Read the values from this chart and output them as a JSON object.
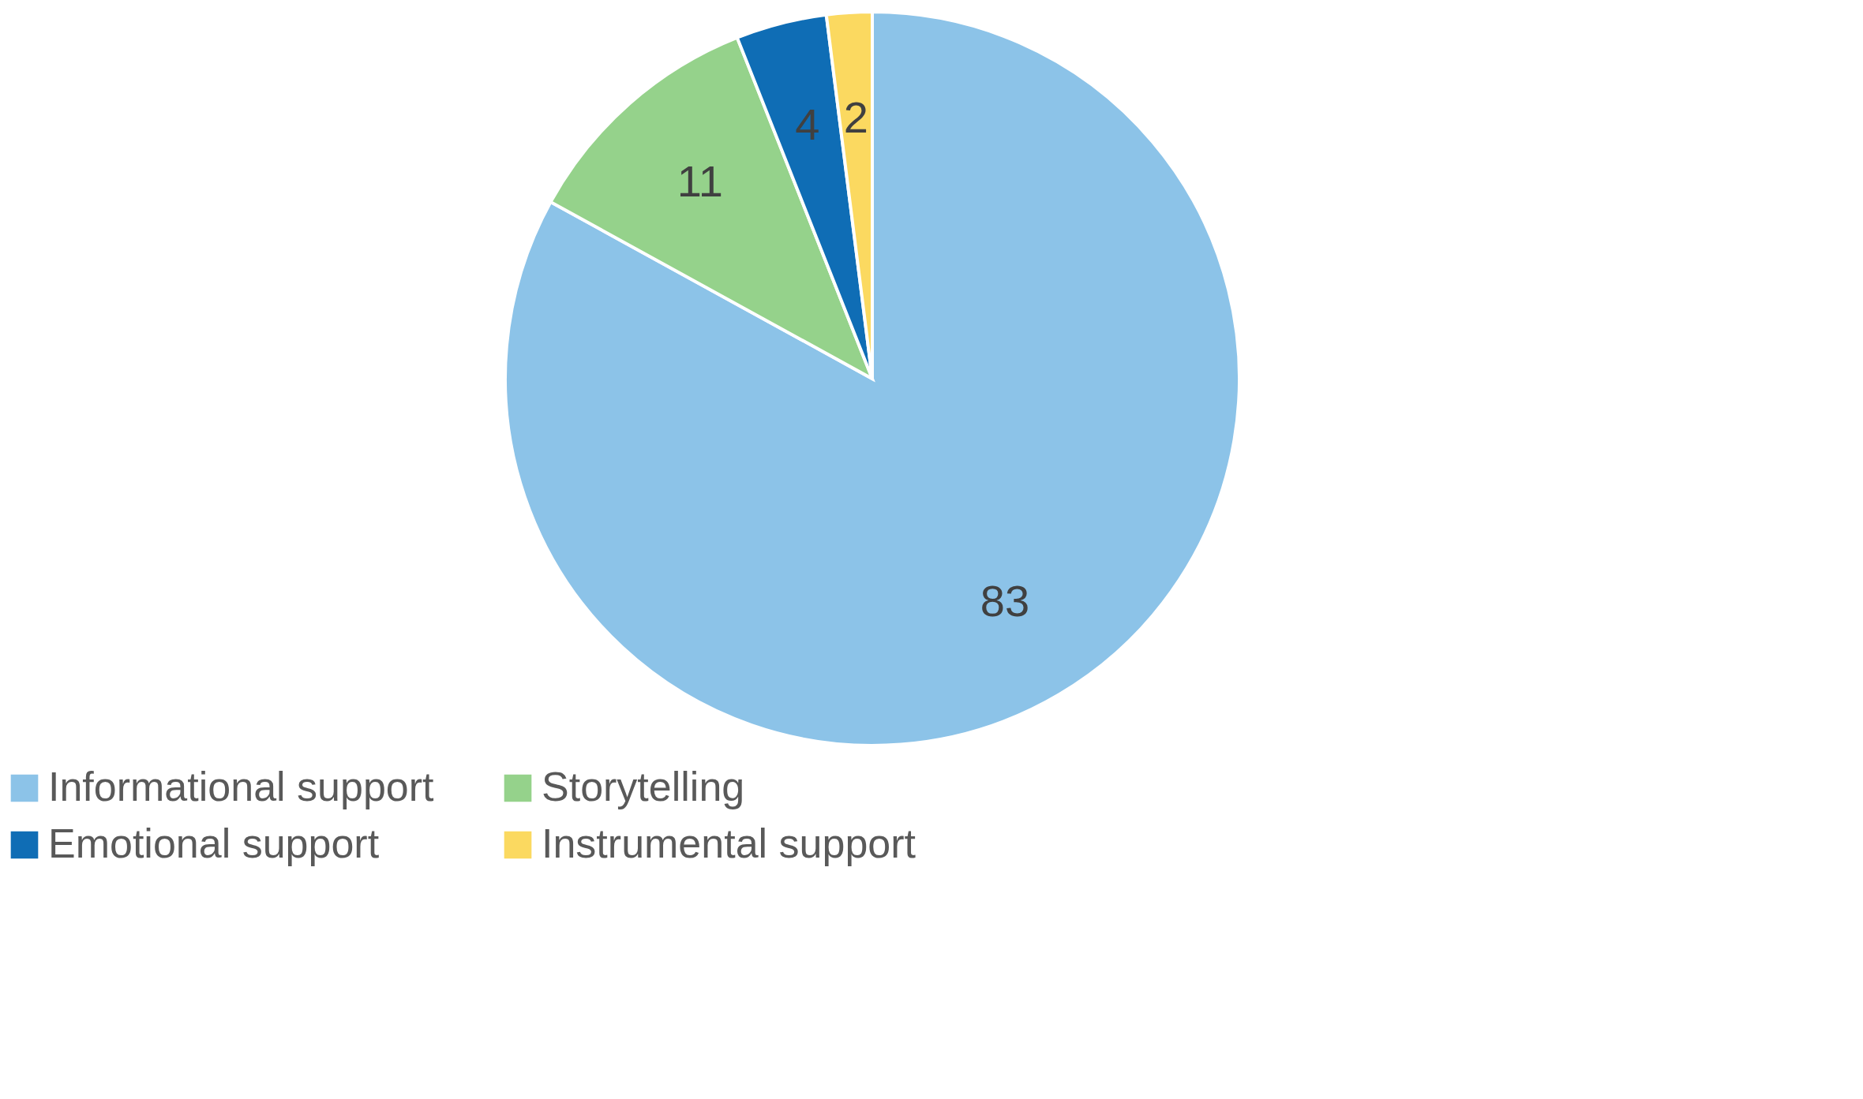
{
  "chart_data": {
    "type": "pie",
    "categories": [
      "Informational support",
      "Storytelling",
      "Emotional support",
      "Instrumental support"
    ],
    "values": [
      83,
      11,
      4,
      2
    ],
    "colors": [
      "#8cc3e8",
      "#95d28b",
      "#0f6db5",
      "#fbd960"
    ],
    "data_labels": true,
    "legend": "bottom"
  }
}
